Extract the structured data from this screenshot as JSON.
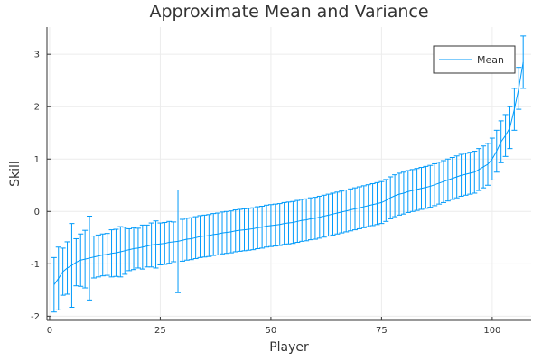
{
  "chart_data": {
    "type": "line",
    "title": "Approximate Mean and Variance",
    "xlabel": "Player",
    "ylabel": "Skill",
    "xlim": [
      -0.6,
      108.8
    ],
    "ylim": [
      -2.08,
      3.52
    ],
    "x_ticks": [
      0,
      25,
      50,
      75,
      100
    ],
    "y_ticks": [
      -2,
      -1,
      0,
      1,
      2,
      3
    ],
    "grid": true,
    "legend_position": "top-right",
    "colors": {
      "series": "#009AFA",
      "axis": "#333333",
      "grid": "#ECECEC"
    },
    "series": [
      {
        "name": "Mean",
        "x": [
          1,
          2,
          3,
          4,
          5,
          6,
          7,
          8,
          9,
          10,
          11,
          12,
          13,
          14,
          15,
          16,
          17,
          18,
          19,
          20,
          21,
          22,
          23,
          24,
          25,
          26,
          27,
          28,
          29,
          30,
          31,
          32,
          33,
          34,
          35,
          36,
          37,
          38,
          39,
          40,
          41,
          42,
          43,
          44,
          45,
          46,
          47,
          48,
          49,
          50,
          51,
          52,
          53,
          54,
          55,
          56,
          57,
          58,
          59,
          60,
          61,
          62,
          63,
          64,
          65,
          66,
          67,
          68,
          69,
          70,
          71,
          72,
          73,
          74,
          75,
          76,
          77,
          78,
          79,
          80,
          81,
          82,
          83,
          84,
          85,
          86,
          87,
          88,
          89,
          90,
          91,
          92,
          93,
          94,
          95,
          96,
          97,
          98,
          99,
          100,
          101,
          102,
          103,
          104,
          105,
          106,
          107
        ],
        "values": [
          -1.4,
          -1.28,
          -1.15,
          -1.08,
          -1.03,
          -0.97,
          -0.93,
          -0.91,
          -0.89,
          -0.87,
          -0.85,
          -0.83,
          -0.82,
          -0.8,
          -0.79,
          -0.77,
          -0.75,
          -0.73,
          -0.71,
          -0.7,
          -0.68,
          -0.66,
          -0.64,
          -0.63,
          -0.62,
          -0.61,
          -0.59,
          -0.58,
          -0.57,
          -0.55,
          -0.53,
          -0.52,
          -0.5,
          -0.48,
          -0.47,
          -0.46,
          -0.44,
          -0.43,
          -0.41,
          -0.4,
          -0.39,
          -0.37,
          -0.36,
          -0.35,
          -0.34,
          -0.33,
          -0.31,
          -0.3,
          -0.28,
          -0.27,
          -0.26,
          -0.25,
          -0.23,
          -0.22,
          -0.21,
          -0.19,
          -0.17,
          -0.16,
          -0.14,
          -0.13,
          -0.11,
          -0.09,
          -0.07,
          -0.05,
          -0.03,
          -0.01,
          0.01,
          0.03,
          0.05,
          0.07,
          0.09,
          0.11,
          0.13,
          0.15,
          0.17,
          0.21,
          0.26,
          0.3,
          0.33,
          0.35,
          0.38,
          0.4,
          0.42,
          0.44,
          0.46,
          0.48,
          0.51,
          0.54,
          0.57,
          0.6,
          0.63,
          0.66,
          0.69,
          0.71,
          0.73,
          0.75,
          0.8,
          0.85,
          0.9,
          1.0,
          1.15,
          1.33,
          1.45,
          1.6,
          1.95,
          2.35,
          2.85
        ],
        "error": [
          0.52,
          0.6,
          0.45,
          0.5,
          0.8,
          0.45,
          0.5,
          0.55,
          0.8,
          0.4,
          0.4,
          0.4,
          0.4,
          0.45,
          0.45,
          0.48,
          0.45,
          0.4,
          0.4,
          0.38,
          0.42,
          0.4,
          0.42,
          0.45,
          0.4,
          0.4,
          0.4,
          0.38,
          0.98,
          0.4,
          0.4,
          0.4,
          0.4,
          0.4,
          0.4,
          0.4,
          0.4,
          0.4,
          0.4,
          0.4,
          0.4,
          0.4,
          0.4,
          0.4,
          0.4,
          0.4,
          0.4,
          0.4,
          0.4,
          0.4,
          0.4,
          0.4,
          0.4,
          0.4,
          0.4,
          0.4,
          0.4,
          0.4,
          0.4,
          0.4,
          0.4,
          0.4,
          0.4,
          0.4,
          0.4,
          0.4,
          0.4,
          0.4,
          0.4,
          0.4,
          0.4,
          0.4,
          0.4,
          0.4,
          0.4,
          0.4,
          0.4,
          0.4,
          0.4,
          0.4,
          0.4,
          0.4,
          0.4,
          0.4,
          0.4,
          0.4,
          0.4,
          0.4,
          0.4,
          0.4,
          0.4,
          0.4,
          0.4,
          0.4,
          0.4,
          0.4,
          0.4,
          0.4,
          0.4,
          0.4,
          0.4,
          0.4,
          0.4,
          0.4,
          0.4,
          0.4,
          0.5
        ]
      }
    ]
  }
}
